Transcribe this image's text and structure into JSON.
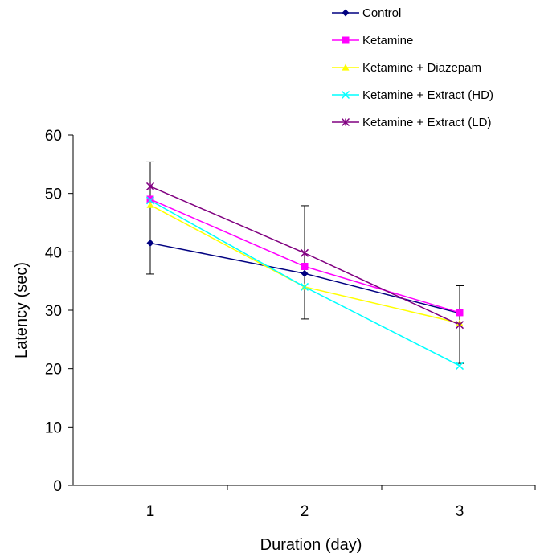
{
  "chart_data": {
    "type": "line",
    "title": "",
    "xlabel": "Duration (day)",
    "ylabel": "Latency (sec)",
    "categories": [
      "1",
      "2",
      "3"
    ],
    "x": [
      1,
      2,
      3
    ],
    "ylim": [
      0,
      60
    ],
    "yticks": [
      0,
      10,
      20,
      30,
      40,
      50,
      60
    ],
    "xticks": [
      1,
      2,
      3
    ],
    "grid": false,
    "legend_position": "top-right",
    "series": [
      {
        "name": "Control",
        "color": "#000080",
        "marker": "diamond",
        "values": [
          41.5,
          36.3,
          29.5
        ]
      },
      {
        "name": "Ketamine",
        "color": "#ff00ff",
        "marker": "square",
        "values": [
          49.0,
          37.5,
          29.6
        ]
      },
      {
        "name": "Ketamine + Diazepam",
        "color": "#ffff00",
        "marker": "triangle",
        "values": [
          48.0,
          34.0,
          27.8
        ]
      },
      {
        "name": "Ketamine + Extract (HD)",
        "color": "#00ffff",
        "marker": "x",
        "values": [
          48.8,
          34.0,
          20.5
        ]
      },
      {
        "name": "Ketamine + Extract (LD)",
        "color": "#800080",
        "marker": "star",
        "values": [
          51.2,
          39.8,
          27.5
        ]
      }
    ],
    "error_bars": [
      {
        "x": 1,
        "low": 36.2,
        "high": 55.4
      },
      {
        "x": 2,
        "low": 28.5,
        "high": 47.9
      },
      {
        "x": 3,
        "low": 20.9,
        "high": 34.2
      }
    ]
  }
}
